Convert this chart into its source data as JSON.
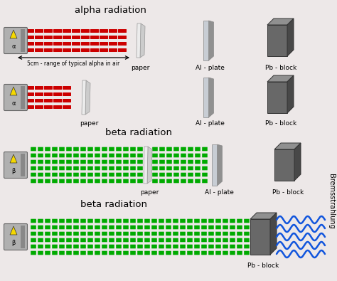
{
  "bg_color": "#ede8e8",
  "title_alpha": "alpha radiation",
  "title_beta1": "beta radiation",
  "title_beta2": "beta radiation",
  "label_5cm": "5cm - range of typical alpha in air",
  "label_paper": "paper",
  "label_al": "Al - plate",
  "label_pb": "Pb - block",
  "label_bremsstrahlung": "Bremsstrahlung",
  "red_color": "#cc0000",
  "green_color": "#00aa00",
  "blue_color": "#1155dd",
  "source_gray_light": "#b0b0b0",
  "source_gray_dark": "#888888",
  "al_front": "#c8cdd4",
  "al_side": "#909090",
  "pb_front": "#686868",
  "pb_top": "#909090",
  "pb_right": "#484848",
  "paper_front": "#ececec",
  "paper_shadow": "#cccccc"
}
